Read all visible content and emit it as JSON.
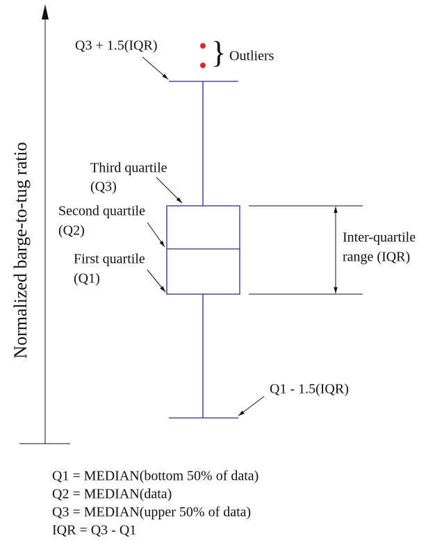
{
  "axis_label": "Normalized barge-to-tug ratio",
  "labels": {
    "upper_fence": "Q3 + 1.5(IQR)",
    "outliers": "Outliers",
    "third_quartile": [
      "Third quartile",
      "(Q3)"
    ],
    "second_quartile": [
      "Second quartile",
      "(Q2)"
    ],
    "first_quartile": [
      "First quartile",
      "(Q1)"
    ],
    "iqr": [
      "Inter-quartile",
      "range (IQR)"
    ],
    "lower_fence": "Q1 - 1.5(IQR)"
  },
  "formulas": [
    "Q1 = MEDIAN(bottom 50% of data)",
    "Q2 = MEDIAN(data)",
    "Q3 = MEDIAN(upper 50% of data)",
    "IQR = Q3 - Q1"
  ]
}
